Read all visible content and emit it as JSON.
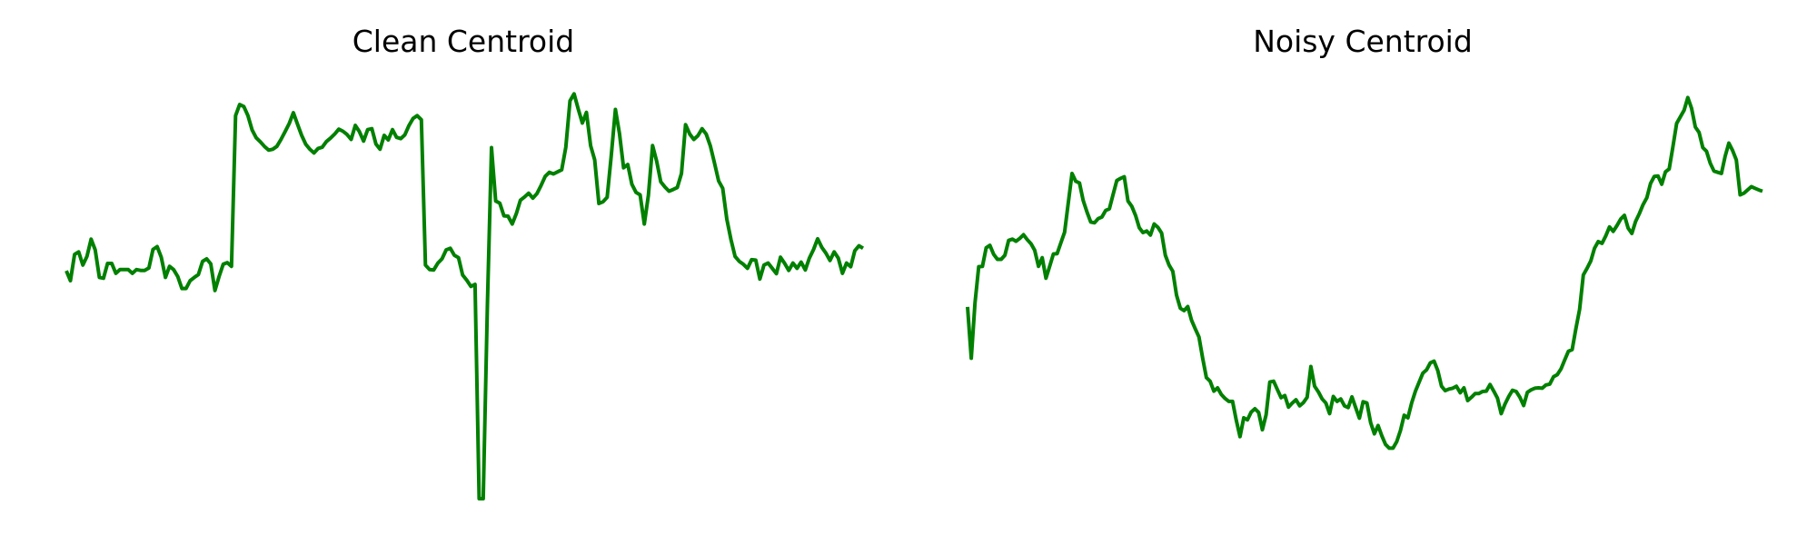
{
  "chart_data": [
    {
      "type": "line",
      "title": "Clean Centroid",
      "xlabel": "",
      "ylabel": "",
      "axes_visible": false,
      "grid": false,
      "ylim": [
        0.0,
        1.0
      ],
      "series": [
        {
          "color": "#008000",
          "values": [
            0.555,
            0.531,
            0.595,
            0.601,
            0.569,
            0.59,
            0.632,
            0.606,
            0.539,
            0.537,
            0.573,
            0.573,
            0.549,
            0.558,
            0.558,
            0.558,
            0.549,
            0.558,
            0.556,
            0.556,
            0.562,
            0.607,
            0.614,
            0.588,
            0.539,
            0.566,
            0.558,
            0.541,
            0.512,
            0.512,
            0.531,
            0.539,
            0.546,
            0.578,
            0.584,
            0.572,
            0.507,
            0.541,
            0.571,
            0.575,
            0.566,
            0.933,
            0.96,
            0.955,
            0.933,
            0.898,
            0.879,
            0.869,
            0.858,
            0.849,
            0.851,
            0.858,
            0.875,
            0.894,
            0.914,
            0.94,
            0.912,
            0.885,
            0.863,
            0.851,
            0.842,
            0.853,
            0.856,
            0.87,
            0.878,
            0.888,
            0.9,
            0.895,
            0.887,
            0.875,
            0.909,
            0.894,
            0.871,
            0.899,
            0.901,
            0.864,
            0.851,
            0.885,
            0.874,
            0.899,
            0.88,
            0.877,
            0.886,
            0.909,
            0.926,
            0.933,
            0.923,
            0.569,
            0.558,
            0.557,
            0.574,
            0.584,
            0.606,
            0.61,
            0.593,
            0.587,
            0.545,
            0.532,
            0.517,
            0.522,
            0.0,
            0.0,
            0.473,
            0.855,
            0.725,
            0.72,
            0.689,
            0.688,
            0.669,
            0.694,
            0.727,
            0.735,
            0.744,
            0.732,
            0.743,
            0.763,
            0.785,
            0.795,
            0.791,
            0.796,
            0.801,
            0.856,
            0.969,
            0.986,
            0.949,
            0.915,
            0.941,
            0.86,
            0.825,
            0.719,
            0.723,
            0.734,
            0.835,
            0.948,
            0.889,
            0.806,
            0.814,
            0.766,
            0.746,
            0.74,
            0.669,
            0.739,
            0.86,
            0.822,
            0.772,
            0.759,
            0.749,
            0.753,
            0.758,
            0.792,
            0.911,
            0.888,
            0.875,
            0.884,
            0.901,
            0.888,
            0.859,
            0.818,
            0.774,
            0.756,
            0.681,
            0.631,
            0.59,
            0.578,
            0.571,
            0.561,
            0.582,
            0.581,
            0.535,
            0.569,
            0.574,
            0.561,
            0.548,
            0.588,
            0.573,
            0.556,
            0.574,
            0.561,
            0.576,
            0.557,
            0.586,
            0.607,
            0.633,
            0.612,
            0.598,
            0.58,
            0.601,
            0.586,
            0.549,
            0.574,
            0.565,
            0.604,
            0.616,
            0.61
          ]
        }
      ]
    },
    {
      "type": "line",
      "title": "Noisy Centroid",
      "xlabel": "",
      "ylabel": "",
      "axes_visible": false,
      "grid": false,
      "ylim": [
        0.0,
        1.0
      ],
      "series": [
        {
          "color": "#008000",
          "values": [
            0.467,
            0.342,
            0.477,
            0.565,
            0.566,
            0.611,
            0.617,
            0.595,
            0.583,
            0.583,
            0.593,
            0.629,
            0.632,
            0.627,
            0.634,
            0.643,
            0.631,
            0.621,
            0.605,
            0.566,
            0.587,
            0.537,
            0.566,
            0.596,
            0.597,
            0.623,
            0.649,
            0.721,
            0.792,
            0.773,
            0.769,
            0.726,
            0.698,
            0.674,
            0.672,
            0.682,
            0.686,
            0.702,
            0.706,
            0.741,
            0.775,
            0.78,
            0.784,
            0.725,
            0.712,
            0.69,
            0.66,
            0.648,
            0.652,
            0.642,
            0.669,
            0.661,
            0.647,
            0.593,
            0.569,
            0.554,
            0.496,
            0.464,
            0.458,
            0.468,
            0.435,
            0.414,
            0.394,
            0.342,
            0.295,
            0.286,
            0.262,
            0.27,
            0.254,
            0.244,
            0.237,
            0.237,
            0.191,
            0.151,
            0.197,
            0.192,
            0.211,
            0.219,
            0.21,
            0.168,
            0.204,
            0.284,
            0.286,
            0.266,
            0.246,
            0.251,
            0.223,
            0.233,
            0.241,
            0.226,
            0.234,
            0.247,
            0.322,
            0.274,
            0.26,
            0.243,
            0.233,
            0.207,
            0.249,
            0.237,
            0.243,
            0.226,
            0.222,
            0.248,
            0.222,
            0.196,
            0.236,
            0.233,
            0.185,
            0.158,
            0.178,
            0.153,
            0.132,
            0.123,
            0.123,
            0.139,
            0.166,
            0.203,
            0.197,
            0.233,
            0.262,
            0.284,
            0.306,
            0.314,
            0.331,
            0.335,
            0.312,
            0.274,
            0.263,
            0.267,
            0.269,
            0.274,
            0.258,
            0.27,
            0.239,
            0.247,
            0.256,
            0.256,
            0.261,
            0.262,
            0.278,
            0.262,
            0.245,
            0.207,
            0.23,
            0.249,
            0.264,
            0.261,
            0.247,
            0.227,
            0.259,
            0.265,
            0.269,
            0.27,
            0.269,
            0.277,
            0.279,
            0.297,
            0.302,
            0.316,
            0.338,
            0.359,
            0.363,
            0.414,
            0.461,
            0.545,
            0.561,
            0.579,
            0.61,
            0.626,
            0.622,
            0.64,
            0.662,
            0.651,
            0.665,
            0.681,
            0.69,
            0.659,
            0.646,
            0.675,
            0.694,
            0.716,
            0.733,
            0.768,
            0.785,
            0.786,
            0.766,
            0.796,
            0.803,
            0.857,
            0.914,
            0.93,
            0.946,
            0.977,
            0.951,
            0.905,
            0.892,
            0.855,
            0.846,
            0.817,
            0.798,
            0.795,
            0.792,
            0.834,
            0.866,
            0.848,
            0.825,
            0.74,
            0.744,
            0.752,
            0.76,
            0.756,
            0.752,
            0.749
          ]
        }
      ]
    }
  ]
}
